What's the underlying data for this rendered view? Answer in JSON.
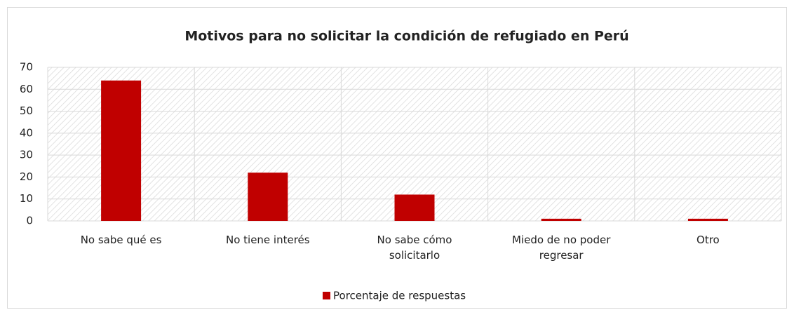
{
  "chart_data": {
    "type": "bar",
    "title": "Motivos para no solicitar la condición de refugiado en Perú",
    "categories": [
      "No sabe qué es",
      "No tiene interés",
      "No sabe cómo solicitarlo",
      "Miedo de no poder regresar",
      "Otro"
    ],
    "series": [
      {
        "name": "Porcentaje de respuestas",
        "color": "#c00000",
        "values": [
          64,
          22,
          12,
          1,
          1
        ]
      }
    ],
    "ylim": [
      0,
      70
    ],
    "yticks": [
      0,
      10,
      20,
      30,
      40,
      50,
      60,
      70
    ],
    "grid": true,
    "legend": "bottom"
  }
}
